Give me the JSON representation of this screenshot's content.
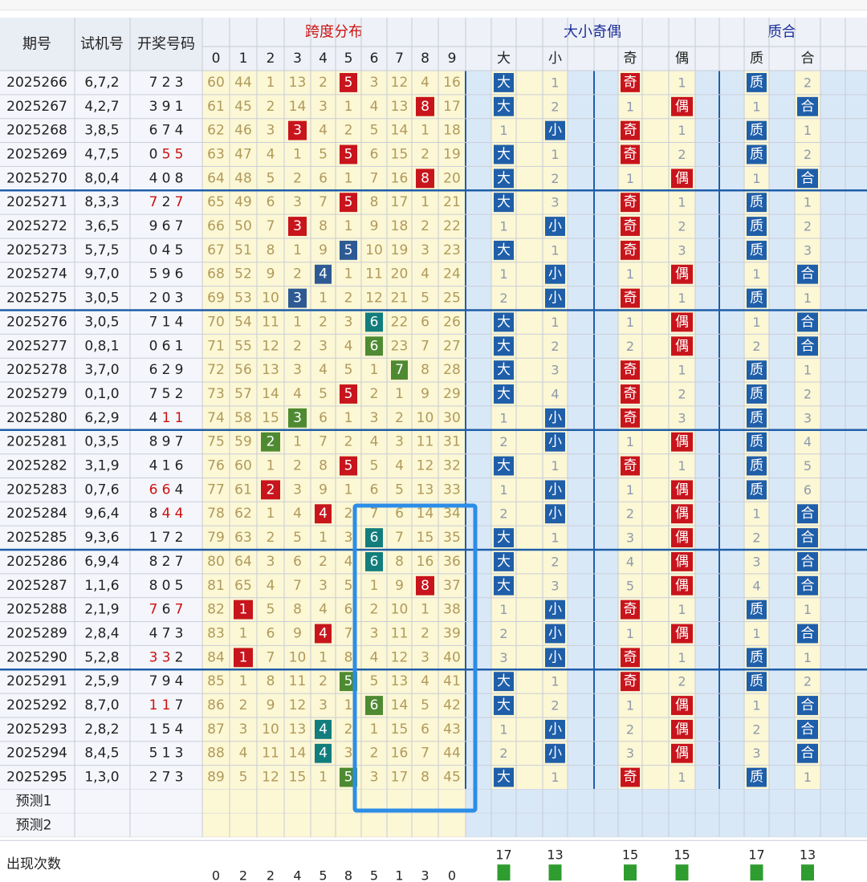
{
  "header": {
    "period_label": "期号",
    "trial_label": "试机号",
    "draw_label": "开奖号码",
    "span_group_label": "跨度分布",
    "span_digits": [
      "0",
      "1",
      "2",
      "3",
      "4",
      "5",
      "6",
      "7",
      "8",
      "9"
    ],
    "size_group_label": "大小奇偶",
    "size_sub": [
      "大",
      "小",
      "奇",
      "偶"
    ],
    "prime_group_label": "质合",
    "prime_sub": [
      "质",
      "合"
    ]
  },
  "rows": [
    {
      "period": "2025266",
      "trial": "6,7,2",
      "draw": [
        "7",
        "2",
        "3"
      ],
      "red": [
        false,
        false,
        false
      ],
      "span": [
        60,
        44,
        1,
        13,
        2,
        "H",
        3,
        12,
        4,
        16
      ],
      "hit_color": "red",
      "big": true,
      "big_miss": 1,
      "odd": true,
      "odd_miss": 1,
      "prime": true,
      "prime_miss": 2
    },
    {
      "period": "2025267",
      "trial": "4,2,7",
      "draw": [
        "3",
        "9",
        "1"
      ],
      "red": [
        false,
        false,
        false
      ],
      "span": [
        61,
        45,
        2,
        14,
        3,
        1,
        4,
        13,
        "H",
        17
      ],
      "hit_color": "red",
      "big": true,
      "big_miss": 2,
      "odd": false,
      "odd_miss": 1,
      "prime": false,
      "prime_miss": 1
    },
    {
      "period": "2025268",
      "trial": "3,8,5",
      "draw": [
        "6",
        "7",
        "4"
      ],
      "red": [
        false,
        false,
        false
      ],
      "span": [
        62,
        46,
        3,
        "H",
        4,
        2,
        5,
        14,
        1,
        18
      ],
      "hit_color": "red",
      "big": false,
      "big_miss": 1,
      "odd": true,
      "odd_miss": 1,
      "prime": true,
      "prime_miss": 1
    },
    {
      "period": "2025269",
      "trial": "4,7,5",
      "draw": [
        "0",
        "5",
        "5"
      ],
      "red": [
        false,
        true,
        true
      ],
      "span": [
        63,
        47,
        4,
        1,
        5,
        "H",
        6,
        15,
        2,
        19
      ],
      "hit_color": "red",
      "big": true,
      "big_miss": 1,
      "odd": true,
      "odd_miss": 2,
      "prime": true,
      "prime_miss": 2
    },
    {
      "period": "2025270",
      "trial": "8,0,4",
      "draw": [
        "4",
        "0",
        "8"
      ],
      "red": [
        false,
        false,
        false
      ],
      "span": [
        64,
        48,
        5,
        2,
        6,
        1,
        7,
        16,
        "H",
        20
      ],
      "hit_color": "red",
      "big": true,
      "big_miss": 2,
      "odd": false,
      "odd_miss": 1,
      "prime": false,
      "prime_miss": 1
    },
    {
      "period": "2025271",
      "trial": "8,3,3",
      "draw": [
        "7",
        "2",
        "7"
      ],
      "red": [
        true,
        false,
        true
      ],
      "span": [
        65,
        49,
        6,
        3,
        7,
        "H",
        8,
        17,
        1,
        21
      ],
      "hit_color": "red",
      "big": true,
      "big_miss": 3,
      "odd": true,
      "odd_miss": 1,
      "prime": true,
      "prime_miss": 1
    },
    {
      "period": "2025272",
      "trial": "3,6,5",
      "draw": [
        "9",
        "6",
        "7"
      ],
      "red": [
        false,
        false,
        false
      ],
      "span": [
        66,
        50,
        7,
        "H",
        8,
        1,
        9,
        18,
        2,
        22
      ],
      "hit_color": "red",
      "big": false,
      "big_miss": 1,
      "odd": true,
      "odd_miss": 2,
      "prime": true,
      "prime_miss": 2
    },
    {
      "period": "2025273",
      "trial": "5,7,5",
      "draw": [
        "0",
        "4",
        "5"
      ],
      "red": [
        false,
        false,
        false
      ],
      "span": [
        67,
        51,
        8,
        1,
        9,
        "H",
        10,
        19,
        3,
        23
      ],
      "hit_color": "blue",
      "big": true,
      "big_miss": 1,
      "odd": true,
      "odd_miss": 3,
      "prime": true,
      "prime_miss": 3
    },
    {
      "period": "2025274",
      "trial": "9,7,0",
      "draw": [
        "5",
        "9",
        "6"
      ],
      "red": [
        false,
        false,
        false
      ],
      "span": [
        68,
        52,
        9,
        2,
        "H",
        1,
        11,
        20,
        4,
        24
      ],
      "hit_color": "blue",
      "big": false,
      "big_miss": 1,
      "odd": false,
      "odd_miss": 1,
      "prime": false,
      "prime_miss": 1
    },
    {
      "period": "2025275",
      "trial": "3,0,5",
      "draw": [
        "2",
        "0",
        "3"
      ],
      "red": [
        false,
        false,
        false
      ],
      "span": [
        69,
        53,
        10,
        "H",
        1,
        2,
        12,
        21,
        5,
        25
      ],
      "hit_color": "blue",
      "big": false,
      "big_miss": 2,
      "odd": true,
      "odd_miss": 1,
      "prime": true,
      "prime_miss": 1
    },
    {
      "period": "2025276",
      "trial": "3,0,5",
      "draw": [
        "7",
        "1",
        "4"
      ],
      "red": [
        false,
        false,
        false
      ],
      "span": [
        70,
        54,
        11,
        1,
        2,
        3,
        "H",
        22,
        6,
        26
      ],
      "hit_color": "teal",
      "big": true,
      "big_miss": 1,
      "odd": false,
      "odd_miss": 1,
      "prime": false,
      "prime_miss": 1
    },
    {
      "period": "2025277",
      "trial": "0,8,1",
      "draw": [
        "0",
        "6",
        "1"
      ],
      "red": [
        false,
        false,
        false
      ],
      "span": [
        71,
        55,
        12,
        2,
        3,
        4,
        "H",
        23,
        7,
        27
      ],
      "hit_color": "green",
      "big": true,
      "big_miss": 2,
      "odd": false,
      "odd_miss": 2,
      "prime": false,
      "prime_miss": 2
    },
    {
      "period": "2025278",
      "trial": "3,7,0",
      "draw": [
        "6",
        "2",
        "9"
      ],
      "red": [
        false,
        false,
        false
      ],
      "span": [
        72,
        56,
        13,
        3,
        4,
        5,
        1,
        "H",
        8,
        28
      ],
      "hit_color": "green",
      "big": true,
      "big_miss": 3,
      "odd": true,
      "odd_miss": 1,
      "prime": true,
      "prime_miss": 1
    },
    {
      "period": "2025279",
      "trial": "0,1,0",
      "draw": [
        "7",
        "5",
        "2"
      ],
      "red": [
        false,
        false,
        false
      ],
      "span": [
        73,
        57,
        14,
        4,
        5,
        "H",
        2,
        1,
        9,
        29
      ],
      "hit_color": "red",
      "big": true,
      "big_miss": 4,
      "odd": true,
      "odd_miss": 2,
      "prime": true,
      "prime_miss": 2
    },
    {
      "period": "2025280",
      "trial": "6,2,9",
      "draw": [
        "4",
        "1",
        "1"
      ],
      "red": [
        false,
        true,
        true
      ],
      "span": [
        74,
        58,
        15,
        "H",
        6,
        1,
        3,
        2,
        10,
        30
      ],
      "hit_color": "green",
      "big": false,
      "big_miss": 1,
      "odd": true,
      "odd_miss": 3,
      "prime": true,
      "prime_miss": 3
    },
    {
      "period": "2025281",
      "trial": "0,3,5",
      "draw": [
        "8",
        "9",
        "7"
      ],
      "red": [
        false,
        false,
        false
      ],
      "span": [
        75,
        59,
        "H",
        1,
        7,
        2,
        4,
        3,
        11,
        31
      ],
      "hit_color": "green",
      "big": false,
      "big_miss": 2,
      "odd": false,
      "odd_miss": 1,
      "prime": true,
      "prime_miss": 4
    },
    {
      "period": "2025282",
      "trial": "3,1,9",
      "draw": [
        "4",
        "1",
        "6"
      ],
      "red": [
        false,
        false,
        false
      ],
      "span": [
        76,
        60,
        1,
        2,
        8,
        "H",
        5,
        4,
        12,
        32
      ],
      "hit_color": "red",
      "big": true,
      "big_miss": 1,
      "odd": true,
      "odd_miss": 1,
      "prime": true,
      "prime_miss": 5
    },
    {
      "period": "2025283",
      "trial": "0,7,6",
      "draw": [
        "6",
        "6",
        "4"
      ],
      "red": [
        true,
        true,
        false
      ],
      "span": [
        77,
        61,
        "H",
        3,
        9,
        1,
        6,
        5,
        13,
        33
      ],
      "hit_color": "red",
      "big": false,
      "big_miss": 1,
      "odd": false,
      "odd_miss": 1,
      "prime": true,
      "prime_miss": 6
    },
    {
      "period": "2025284",
      "trial": "9,6,4",
      "draw": [
        "8",
        "4",
        "4"
      ],
      "red": [
        false,
        true,
        true
      ],
      "span": [
        78,
        62,
        1,
        4,
        "H",
        2,
        7,
        6,
        14,
        34
      ],
      "hit_color": "red",
      "big": false,
      "big_miss": 2,
      "odd": false,
      "odd_miss": 2,
      "prime": false,
      "prime_miss": 1
    },
    {
      "period": "2025285",
      "trial": "9,3,6",
      "draw": [
        "1",
        "7",
        "2"
      ],
      "red": [
        false,
        false,
        false
      ],
      "span": [
        79,
        63,
        2,
        5,
        1,
        3,
        "H",
        7,
        15,
        35
      ],
      "hit_color": "teal",
      "big": true,
      "big_miss": 1,
      "odd": false,
      "odd_miss": 3,
      "prime": false,
      "prime_miss": 2
    },
    {
      "period": "2025286",
      "trial": "6,9,4",
      "draw": [
        "8",
        "2",
        "7"
      ],
      "red": [
        false,
        false,
        false
      ],
      "span": [
        80,
        64,
        3,
        6,
        2,
        4,
        "H",
        8,
        16,
        36
      ],
      "hit_color": "teal",
      "big": true,
      "big_miss": 2,
      "odd": false,
      "odd_miss": 4,
      "prime": false,
      "prime_miss": 3
    },
    {
      "period": "2025287",
      "trial": "1,1,6",
      "draw": [
        "8",
        "0",
        "5"
      ],
      "red": [
        false,
        false,
        false
      ],
      "span": [
        81,
        65,
        4,
        7,
        3,
        5,
        1,
        9,
        "H",
        37
      ],
      "hit_color": "red",
      "big": true,
      "big_miss": 3,
      "odd": false,
      "odd_miss": 5,
      "prime": false,
      "prime_miss": 4
    },
    {
      "period": "2025288",
      "trial": "2,1,9",
      "draw": [
        "7",
        "6",
        "7"
      ],
      "red": [
        true,
        false,
        true
      ],
      "span": [
        82,
        "H",
        5,
        8,
        4,
        6,
        2,
        10,
        1,
        38
      ],
      "hit_color": "red",
      "big": false,
      "big_miss": 1,
      "odd": true,
      "odd_miss": 1,
      "prime": true,
      "prime_miss": 1
    },
    {
      "period": "2025289",
      "trial": "2,8,4",
      "draw": [
        "4",
        "7",
        "3"
      ],
      "red": [
        false,
        false,
        false
      ],
      "span": [
        83,
        1,
        6,
        9,
        "H",
        7,
        3,
        11,
        2,
        39
      ],
      "hit_color": "red",
      "big": false,
      "big_miss": 2,
      "odd": false,
      "odd_miss": 1,
      "prime": false,
      "prime_miss": 1
    },
    {
      "period": "2025290",
      "trial": "5,2,8",
      "draw": [
        "3",
        "3",
        "2"
      ],
      "red": [
        true,
        true,
        false
      ],
      "span": [
        84,
        "H",
        7,
        10,
        1,
        8,
        4,
        12,
        3,
        40
      ],
      "hit_color": "red",
      "big": false,
      "big_miss": 3,
      "odd": true,
      "odd_miss": 1,
      "prime": true,
      "prime_miss": 1
    },
    {
      "period": "2025291",
      "trial": "2,5,9",
      "draw": [
        "7",
        "9",
        "4"
      ],
      "red": [
        false,
        false,
        false
      ],
      "span": [
        85,
        1,
        8,
        11,
        2,
        "H",
        5,
        13,
        4,
        41
      ],
      "hit_color": "green",
      "big": true,
      "big_miss": 1,
      "odd": true,
      "odd_miss": 2,
      "prime": true,
      "prime_miss": 2
    },
    {
      "period": "2025292",
      "trial": "8,7,0",
      "draw": [
        "1",
        "1",
        "7"
      ],
      "red": [
        true,
        true,
        false
      ],
      "span": [
        86,
        2,
        9,
        12,
        3,
        1,
        "H",
        14,
        5,
        42
      ],
      "hit_color": "green",
      "big": true,
      "big_miss": 2,
      "odd": false,
      "odd_miss": 1,
      "prime": false,
      "prime_miss": 1
    },
    {
      "period": "2025293",
      "trial": "2,8,2",
      "draw": [
        "1",
        "5",
        "4"
      ],
      "red": [
        false,
        false,
        false
      ],
      "span": [
        87,
        3,
        10,
        13,
        "H",
        2,
        1,
        15,
        6,
        43
      ],
      "hit_color": "teal",
      "big": false,
      "big_miss": 1,
      "odd": false,
      "odd_miss": 2,
      "prime": false,
      "prime_miss": 2
    },
    {
      "period": "2025294",
      "trial": "8,4,5",
      "draw": [
        "5",
        "1",
        "3"
      ],
      "red": [
        false,
        false,
        false
      ],
      "span": [
        88,
        4,
        11,
        14,
        "H",
        3,
        2,
        16,
        7,
        44
      ],
      "hit_color": "teal",
      "big": false,
      "big_miss": 2,
      "odd": false,
      "odd_miss": 3,
      "prime": false,
      "prime_miss": 3
    },
    {
      "period": "2025295",
      "trial": "1,3,0",
      "draw": [
        "2",
        "7",
        "3"
      ],
      "red": [
        false,
        false,
        false
      ],
      "span": [
        89,
        5,
        12,
        15,
        1,
        "H",
        3,
        17,
        8,
        45
      ],
      "hit_color": "green",
      "big": true,
      "big_miss": 1,
      "odd": true,
      "odd_miss": 1,
      "prime": true,
      "prime_miss": 1
    }
  ],
  "hit_labels": {
    "big": "大",
    "small": "小",
    "odd": "奇",
    "even": "偶",
    "prime": "质",
    "composite": "合"
  },
  "predict_labels": [
    "预测1",
    "预测2"
  ],
  "counts_label": "出现次数",
  "span_counts": [
    "0",
    "2",
    "2",
    "4",
    "5",
    "8",
    "5",
    "1",
    "3",
    "0"
  ],
  "size_counts": [
    "17",
    "13",
    "15",
    "15"
  ],
  "prime_counts": [
    "17",
    "13"
  ],
  "colors": {
    "red": "#c8141c",
    "blue": "#2e5a94",
    "teal": "#127d7d",
    "green": "#4e8a32",
    "blue_badge": "#1f5ea9",
    "cream": "#fcf7d4",
    "light_blue": "#d9e8f7",
    "left_bg": "#f4f6fb",
    "separator": "#1f5ea9",
    "header_bg": "#eef1f7",
    "red_text": "#cc1111",
    "group_header_red": "#cc1111",
    "group_header_blue": "#1b2f9a",
    "miss_text": "#b09a5c",
    "highlight_box": "#2b8de8",
    "count_bar": "#2f9c2f"
  },
  "chart_data": {
    "type": "table",
    "title": "跨度分布 / 大小奇偶 / 质合",
    "columns": [
      "期号",
      "试机号",
      "开奖号码",
      "跨度0",
      "跨度1",
      "跨度2",
      "跨度3",
      "跨度4",
      "跨度5",
      "跨度6",
      "跨度7",
      "跨度8",
      "跨度9",
      "大",
      "小",
      "奇",
      "偶",
      "质",
      "合"
    ],
    "periods": [
      "2025266",
      "2025267",
      "2025268",
      "2025269",
      "2025270",
      "2025271",
      "2025272",
      "2025273",
      "2025274",
      "2025275",
      "2025276",
      "2025277",
      "2025278",
      "2025279",
      "2025280",
      "2025281",
      "2025282",
      "2025283",
      "2025284",
      "2025285",
      "2025286",
      "2025287",
      "2025288",
      "2025289",
      "2025290",
      "2025291",
      "2025292",
      "2025293",
      "2025294",
      "2025295"
    ],
    "span_values": [
      5,
      8,
      3,
      5,
      8,
      5,
      3,
      5,
      4,
      3,
      6,
      6,
      7,
      5,
      3,
      2,
      5,
      2,
      4,
      6,
      6,
      8,
      1,
      4,
      1,
      5,
      6,
      4,
      4,
      5
    ],
    "counts": {
      "span": [
        0,
        2,
        2,
        4,
        5,
        8,
        5,
        1,
        3,
        0
      ],
      "big": 17,
      "small": 13,
      "odd": 15,
      "even": 15,
      "prime": 17,
      "composite": 13
    }
  }
}
